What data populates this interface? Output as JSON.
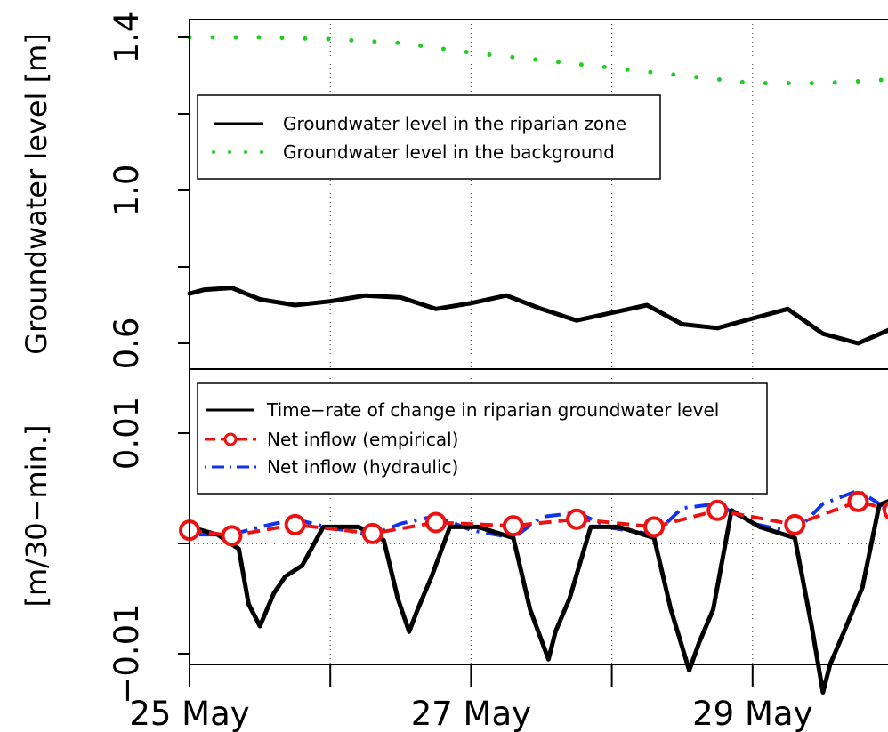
{
  "chart_data": [
    {
      "type": "line",
      "panel": "top",
      "ylabel": "Groundwater level [m]",
      "ylim": [
        0.55,
        1.42
      ],
      "yticks": [
        "0.6",
        "1.0",
        "1.4"
      ],
      "yticks_minor": [
        0.8,
        1.2
      ],
      "xlim": [
        0,
        5
      ],
      "grid": true,
      "legend": {
        "placement": "top-left",
        "entries": [
          "Groundwater level in the riparian zone",
          "Groundwater level in the background"
        ]
      },
      "series": [
        {
          "name": "Groundwater level in the riparian zone",
          "style": "solid",
          "color": "#000000",
          "x": [
            0,
            0.1,
            0.3,
            0.5,
            0.75,
            1.0,
            1.25,
            1.5,
            1.75,
            2.0,
            2.25,
            2.5,
            2.75,
            3.0,
            3.25,
            3.5,
            3.75,
            4.0,
            4.25,
            4.5,
            4.75,
            5.0
          ],
          "y": [
            0.73,
            0.74,
            0.745,
            0.715,
            0.7,
            0.71,
            0.725,
            0.72,
            0.69,
            0.705,
            0.725,
            0.69,
            0.66,
            0.68,
            0.7,
            0.65,
            0.64,
            0.665,
            0.69,
            0.625,
            0.6,
            0.64
          ]
        },
        {
          "name": "Groundwater level in the background",
          "style": "dotted",
          "color": "#22cc22",
          "x": [
            0,
            0.5,
            1.0,
            1.5,
            2.0,
            2.5,
            3.0,
            3.5,
            4.0,
            4.5,
            5.0
          ],
          "y": [
            1.4,
            1.4,
            1.395,
            1.385,
            1.36,
            1.34,
            1.32,
            1.3,
            1.28,
            1.28,
            1.29
          ]
        }
      ]
    },
    {
      "type": "line",
      "panel": "bottom",
      "ylabel": "[m/30−min.]",
      "ylim": [
        -0.012,
        0.015
      ],
      "yticks": [
        "−0.01",
        "0.01"
      ],
      "yticks_minor": [
        0
      ],
      "xlim": [
        0,
        5
      ],
      "xticks_labeled": [
        "25 May",
        "27 May",
        "29 May"
      ],
      "grid": true,
      "legend": {
        "placement": "top-left",
        "entries": [
          "Time−rate of change in riparian groundwater level",
          "Net inflow (empirical)",
          "Net inflow (hydraulic)"
        ]
      },
      "series": [
        {
          "name": "Time−rate of change in riparian groundwater level",
          "style": "solid",
          "color": "#000000",
          "x": [
            0,
            0.2,
            0.35,
            0.42,
            0.5,
            0.6,
            0.68,
            0.8,
            0.95,
            1.2,
            1.38,
            1.48,
            1.56,
            1.62,
            1.72,
            1.85,
            2.05,
            2.3,
            2.42,
            2.55,
            2.6,
            2.7,
            2.85,
            3.05,
            3.3,
            3.42,
            3.55,
            3.62,
            3.72,
            3.85,
            4.05,
            4.3,
            4.42,
            4.5,
            4.55,
            4.65,
            4.78,
            4.9,
            5.0
          ],
          "y": [
            0.0015,
            0.0008,
            -0.0005,
            -0.0055,
            -0.0075,
            -0.0045,
            -0.003,
            -0.002,
            0.0015,
            0.0015,
            0.0003,
            -0.005,
            -0.008,
            -0.006,
            -0.003,
            0.0015,
            0.0015,
            0.0005,
            -0.006,
            -0.0105,
            -0.008,
            -0.005,
            0.0015,
            0.0015,
            0.0005,
            -0.006,
            -0.0115,
            -0.009,
            -0.006,
            0.003,
            0.0015,
            0.0005,
            -0.0075,
            -0.0135,
            -0.011,
            -0.008,
            -0.004,
            0.0035,
            0.004
          ]
        },
        {
          "name": "Net inflow (empirical)",
          "style": "dashed-circles",
          "color": "#ee1111",
          "x": [
            0.0,
            0.3,
            0.75,
            1.3,
            1.75,
            2.3,
            2.75,
            3.3,
            3.75,
            4.3,
            4.75,
            5.0
          ],
          "y": [
            0.0012,
            0.0007,
            0.0017,
            0.0009,
            0.0019,
            0.0016,
            0.0022,
            0.0015,
            0.003,
            0.0017,
            0.0038,
            0.003
          ]
        },
        {
          "name": "Net inflow (hydraulic)",
          "style": "dashdot",
          "color": "#1133ee",
          "x": [
            0.0,
            0.3,
            0.5,
            0.75,
            1.0,
            1.3,
            1.5,
            1.75,
            2.0,
            2.3,
            2.5,
            2.75,
            3.0,
            3.3,
            3.5,
            3.75,
            4.0,
            4.3,
            4.5,
            4.75,
            5.0
          ],
          "y": [
            0.0008,
            0.0008,
            0.0015,
            0.0022,
            0.0014,
            0.0008,
            0.0018,
            0.0025,
            0.0012,
            0.0005,
            0.0024,
            0.0028,
            0.0014,
            0.0008,
            0.0032,
            0.0036,
            0.0018,
            0.001,
            0.0036,
            0.0048,
            0.0028
          ]
        },
        {
          "name": "zero",
          "style": "dotted-reference",
          "color": "#000000",
          "x": [
            0,
            5
          ],
          "y": [
            0,
            0
          ]
        }
      ]
    }
  ]
}
